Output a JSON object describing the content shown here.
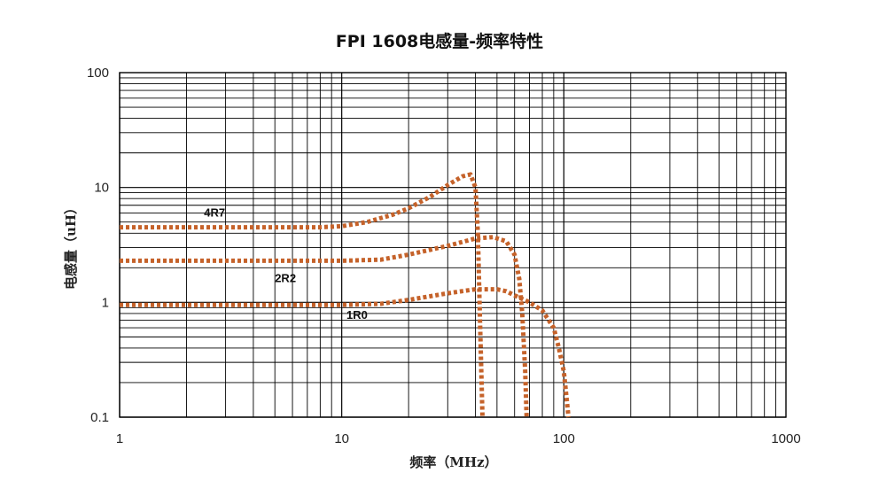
{
  "chart_data": {
    "type": "line",
    "title": "FPI 1608电感量-频率特性",
    "xlabel": "频率（MHz）",
    "ylabel": "电感量（uH）",
    "x_scale": "log",
    "y_scale": "log",
    "xlim": [
      1,
      1000
    ],
    "ylim": [
      0.1,
      100
    ],
    "x_ticks": [
      "1",
      "10",
      "100",
      "1000"
    ],
    "y_ticks": [
      "0.1",
      "1",
      "10",
      "100"
    ],
    "grid": true,
    "line_style": "dotted",
    "line_color": "#C5622A",
    "series": [
      {
        "name": "4R7",
        "x": [
          1,
          2,
          5,
          8,
          10,
          13,
          17,
          20,
          25,
          30,
          35,
          38,
          40,
          41,
          42,
          43
        ],
        "y": [
          4.5,
          4.5,
          4.5,
          4.5,
          4.6,
          5.0,
          5.8,
          6.6,
          8.3,
          10.5,
          12.5,
          13.0,
          10.0,
          4.0,
          0.6,
          0.1
        ]
      },
      {
        "name": "2R2",
        "x": [
          1,
          2,
          5,
          10,
          15,
          20,
          30,
          40,
          48,
          55,
          60,
          63,
          65,
          67,
          68
        ],
        "y": [
          2.3,
          2.3,
          2.3,
          2.3,
          2.35,
          2.6,
          3.1,
          3.6,
          3.7,
          3.4,
          2.6,
          1.6,
          0.8,
          0.25,
          0.1
        ]
      },
      {
        "name": "1R0",
        "x": [
          1,
          2,
          5,
          10,
          15,
          20,
          30,
          40,
          50,
          55,
          60,
          70,
          80,
          90,
          95,
          100,
          105
        ],
        "y": [
          0.95,
          0.95,
          0.95,
          0.95,
          0.97,
          1.05,
          1.2,
          1.3,
          1.3,
          1.25,
          1.15,
          1.0,
          0.85,
          0.6,
          0.4,
          0.25,
          0.1
        ]
      }
    ],
    "series_labels": [
      "4R7",
      "2R2",
      "1R0"
    ]
  }
}
